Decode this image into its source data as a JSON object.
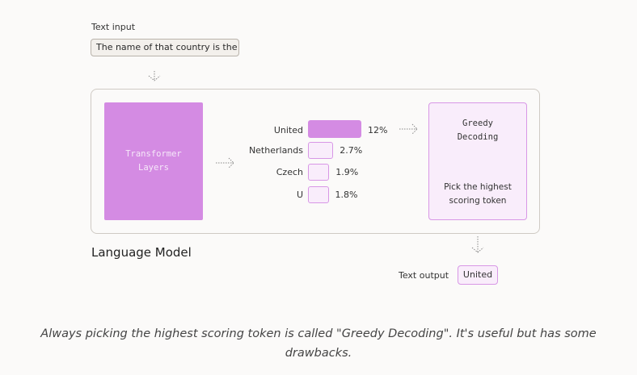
{
  "input": {
    "label": "Text input",
    "value": "The name of that country is the"
  },
  "model": {
    "name": "Language Model",
    "transformer_line1": "Transformer",
    "transformer_line2": "Layers"
  },
  "tokens": [
    {
      "label": "United",
      "pct": "12%",
      "value": 12
    },
    {
      "label": "Netherlands",
      "pct": "2.7%",
      "value": 2.7
    },
    {
      "label": "Czech",
      "pct": "1.9%",
      "value": 1.9
    },
    {
      "label": "U",
      "pct": "1.8%",
      "value": 1.8
    }
  ],
  "greedy": {
    "title_line1": "Greedy",
    "title_line2": "Decoding",
    "desc_line1": "Pick the highest",
    "desc_line2": "scoring token"
  },
  "output": {
    "label": "Text output",
    "value": "United"
  },
  "caption": {
    "line1": "Always picking the highest scoring token is called \"Greedy Decoding\". It's useful but has some",
    "line2": "drawbacks."
  },
  "colors": {
    "accent": "#d48be3",
    "accent_light": "#f9edfb",
    "accent_border": "#d897e6"
  }
}
